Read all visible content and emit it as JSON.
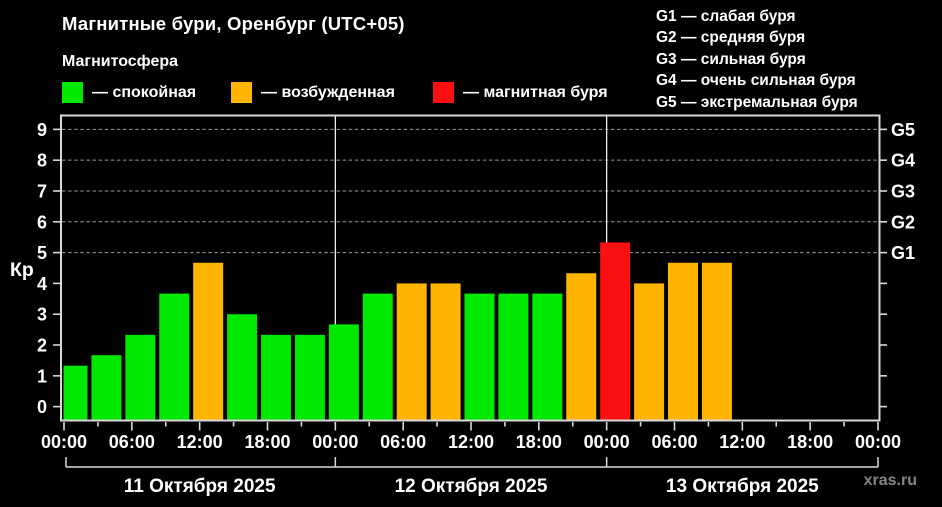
{
  "page": {
    "background": "#000000"
  },
  "header": {
    "title": "Магнитные бури, Оренбург (UTC+05)",
    "subtitle": "Магнитосфера",
    "legend": [
      {
        "name": "quiet",
        "label": "— спокойная",
        "color": "#00e800"
      },
      {
        "name": "excited",
        "label": "— возбужденная",
        "color": "#ffb400"
      },
      {
        "name": "storm",
        "label": "— магнитная буря",
        "color": "#fa1010"
      }
    ],
    "g_scale_legend": [
      "G1 — слабая буря",
      "G2 — средняя буря",
      "G3 — сильная буря",
      "G4 — очень сильная буря",
      "G5 — экстремальная буря"
    ]
  },
  "watermark": "xras.ru",
  "chart_data": {
    "type": "bar",
    "title": "Магнитные бури, Оренбург (UTC+05)",
    "ylabel": "Кр",
    "ylim": [
      0,
      9
    ],
    "y_ticks": [
      0,
      1,
      2,
      3,
      4,
      5,
      6,
      7,
      8,
      9
    ],
    "hours_span": 72,
    "bar_interval_hours": 3,
    "x_major_tick_hours": 6,
    "x_minor_tick_hours": 3,
    "x_tick_labels": [
      "00:00",
      "06:00",
      "12:00",
      "18:00",
      "00:00",
      "06:00",
      "12:00",
      "18:00",
      "00:00",
      "06:00",
      "12:00",
      "18:00",
      "00:00"
    ],
    "grid_levels": [
      5,
      6,
      7,
      8,
      9
    ],
    "right_axis_labels": [
      {
        "kp": 5,
        "label": "G1"
      },
      {
        "kp": 6,
        "label": "G2"
      },
      {
        "kp": 7,
        "label": "G3"
      },
      {
        "kp": 8,
        "label": "G4"
      },
      {
        "kp": 9,
        "label": "G5"
      }
    ],
    "day_boundaries_hours": [
      24,
      48
    ],
    "status_colors": {
      "quiet": "#00e800",
      "excited": "#ffb400",
      "storm": "#fa1010"
    },
    "axis_color": "#d9d9d9",
    "grid_color": "#9a9a9a",
    "days": [
      {
        "date": "11 Октября 2025",
        "values": [
          1.33,
          1.67,
          2.33,
          3.67,
          4.67,
          3,
          2.33,
          2.33
        ],
        "status": [
          "quiet",
          "quiet",
          "quiet",
          "quiet",
          "excited",
          "quiet",
          "quiet",
          "quiet"
        ]
      },
      {
        "date": "12 Октября 2025",
        "values": [
          2.67,
          3.67,
          4,
          4,
          3.67,
          3.67,
          3.67,
          4.33
        ],
        "status": [
          "quiet",
          "quiet",
          "excited",
          "excited",
          "quiet",
          "quiet",
          "quiet",
          "excited"
        ]
      },
      {
        "date": "13 Октября 2025",
        "values": [
          5.33,
          4,
          4.67,
          4.67,
          null,
          null,
          null,
          null
        ],
        "status": [
          "storm",
          "excited",
          "excited",
          "excited",
          null,
          null,
          null,
          null
        ]
      }
    ]
  }
}
